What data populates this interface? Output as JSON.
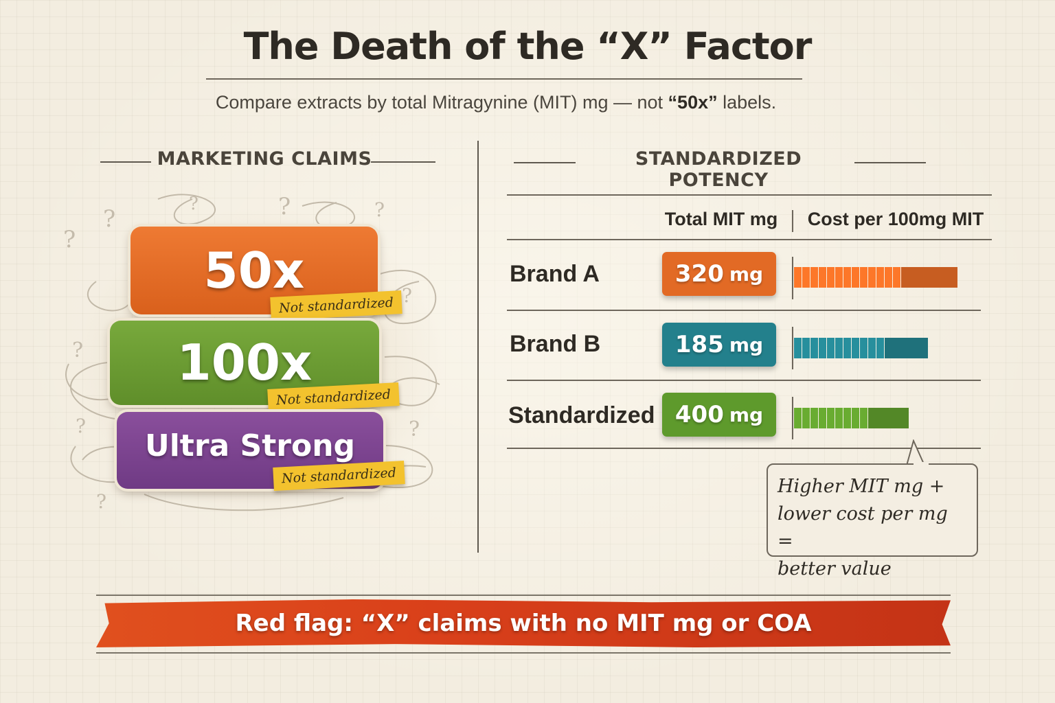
{
  "header": {
    "title": "The Death of the “X” Factor",
    "subtitle_prefix": "Compare extracts by total Mitragynine (MIT) mg — not ",
    "subtitle_bold": "“50x”",
    "subtitle_suffix": " labels."
  },
  "left": {
    "heading": "MARKETING CLAIMS",
    "claims": [
      {
        "label": "50x",
        "tag": "Not standardized",
        "color": "#e26a25"
      },
      {
        "label": "100x",
        "tag": "Not standardized",
        "color": "#6b9c33"
      },
      {
        "label": "Ultra Strong",
        "tag": "Not standardized",
        "color": "#7c4490"
      }
    ]
  },
  "right": {
    "heading": "STANDARDIZED POTENCY",
    "columns": [
      "Total MIT mg",
      "Cost per 100mg MIT"
    ],
    "rows": [
      {
        "brand": "Brand A",
        "mit_value": "320",
        "unit": "mg",
        "color": "#e26a25",
        "cost_fraction": 1.0
      },
      {
        "brand": "Brand B",
        "mit_value": "185",
        "unit": "mg",
        "color": "#23808c",
        "cost_fraction": 0.82
      },
      {
        "brand": "Standardized",
        "mit_value": "400",
        "unit": "mg",
        "color": "#5e9a2c",
        "cost_fraction": 0.7
      }
    ],
    "callout": [
      "Higher MIT mg +",
      "lower cost per mg =",
      "better value"
    ]
  },
  "banner": {
    "text": "Red flag: “X” claims with no MIT mg or COA"
  }
}
